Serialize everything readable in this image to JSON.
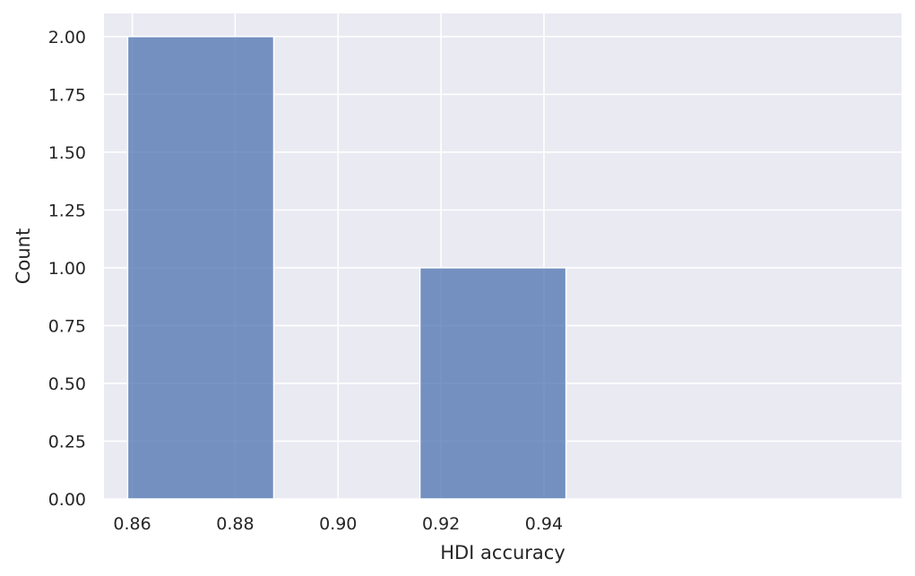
{
  "chart_data": {
    "type": "bar",
    "xlabel": "HDI accuracy",
    "ylabel": "Count",
    "xlim": [
      0.8545,
      1.0095
    ],
    "ylim": [
      0,
      2.1
    ],
    "bins": [
      {
        "x0": 0.8591,
        "x1": 0.8875,
        "value": 2
      },
      {
        "x0": 0.8875,
        "x1": 0.9159,
        "value": 0
      },
      {
        "x0": 0.9159,
        "x1": 0.9443,
        "value": 1
      }
    ],
    "xticks": [
      {
        "value": 0.86,
        "label": "0.86"
      },
      {
        "value": 0.88,
        "label": "0.88"
      },
      {
        "value": 0.9,
        "label": "0.90"
      },
      {
        "value": 0.92,
        "label": "0.92"
      },
      {
        "value": 0.94,
        "label": "0.94"
      }
    ],
    "yticks": [
      {
        "value": 0,
        "label": "0.00"
      },
      {
        "value": 0.25,
        "label": "0.25"
      },
      {
        "value": 0.5,
        "label": "0.50"
      },
      {
        "value": 0.75,
        "label": "0.75"
      },
      {
        "value": 1.0,
        "label": "1.00"
      },
      {
        "value": 1.25,
        "label": "1.25"
      },
      {
        "value": 1.5,
        "label": "1.50"
      },
      {
        "value": 1.75,
        "label": "1.75"
      },
      {
        "value": 2.0,
        "label": "2.00"
      }
    ],
    "grid": true,
    "colors": {
      "bar": "#4c72b0",
      "background": "#eaeaf2",
      "grid": "#ffffff"
    }
  }
}
